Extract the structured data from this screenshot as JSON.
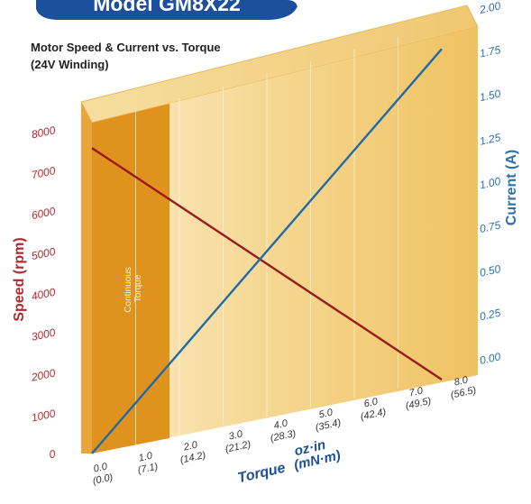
{
  "header": {
    "model_title": "Model GM8X22"
  },
  "chart_data": {
    "type": "line",
    "title": "Motor Speed & Current vs. Torque",
    "subtitle": "(24V Winding)",
    "x": [
      0,
      8
    ],
    "x_ticks": [
      {
        "value": 0,
        "ozin": "0.0",
        "mnm": "(0.0)"
      },
      {
        "value": 1,
        "ozin": "1.0",
        "mnm": "(7.1)"
      },
      {
        "value": 2,
        "ozin": "2.0",
        "mnm": "(14.2)"
      },
      {
        "value": 3,
        "ozin": "3.0",
        "mnm": "(21.2)"
      },
      {
        "value": 4,
        "ozin": "4.0",
        "mnm": "(28.3)"
      },
      {
        "value": 5,
        "ozin": "5.0",
        "mnm": "(35.4)"
      },
      {
        "value": 6,
        "ozin": "6.0",
        "mnm": "(42.4)"
      },
      {
        "value": 7,
        "ozin": "7.0",
        "mnm": "(49.5)"
      },
      {
        "value": 8,
        "ozin": "8.0",
        "mnm": "(56.5)"
      }
    ],
    "xlabel": "Torque",
    "xlabel_units": [
      "oz·in",
      "(mN·m)"
    ],
    "xlim": [
      0,
      8
    ],
    "ylabel_left": "Speed (rpm)",
    "ylim_left": [
      0,
      8000
    ],
    "yticks_left": [
      "0",
      "1000",
      "2000",
      "3000",
      "4000",
      "5000",
      "6000",
      "7000",
      "8000"
    ],
    "ylabel_right": "Current (A)",
    "ylim_right": [
      0,
      2.0
    ],
    "yticks_right": [
      "0.00",
      "0.25",
      "0.50",
      "0.75",
      "1.00",
      "1.25",
      "1.50",
      "1.75",
      "2.00"
    ],
    "series": [
      {
        "axis": "left",
        "color": "#9a1a1a",
        "values": [
          7550,
          0
        ]
      },
      {
        "axis": "right",
        "color": "#1f6aa8",
        "values": [
          0,
          1.9
        ]
      }
    ],
    "shaded_region": {
      "label": "Continuous Torque",
      "x_range": [
        0,
        1.5
      ]
    },
    "colors": {
      "speed": "#b5262a",
      "current": "#2a70ad",
      "panel": "#f2c66a",
      "panel_dark": "#e5ab4a",
      "continuous": "#e0921e",
      "header": "#1c4f9c"
    }
  }
}
